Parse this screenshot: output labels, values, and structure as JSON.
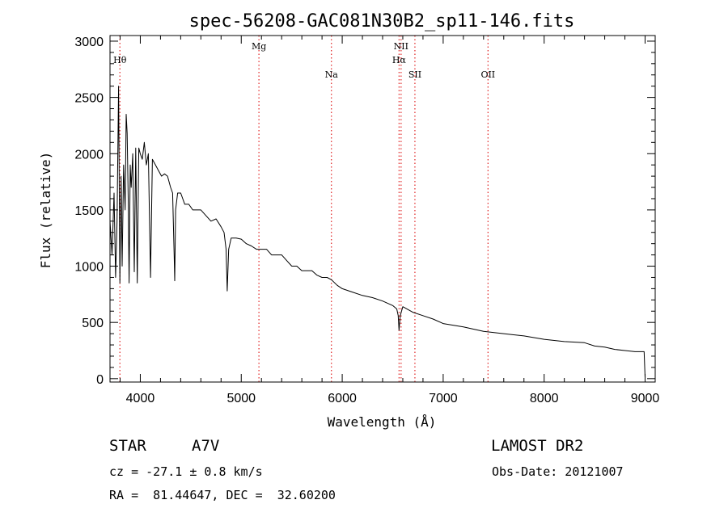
{
  "chart_data": {
    "type": "line",
    "title": "spec-56208-GAC081N30B2_sp11-146.fits",
    "xlabel": "Wavelength (Å)",
    "ylabel": "Flux (relative)",
    "xlim": [
      3700,
      9100
    ],
    "ylim": [
      -30,
      3050
    ],
    "xticks": [
      4000,
      5000,
      6000,
      7000,
      8000,
      9000
    ],
    "yticks": [
      0,
      500,
      1000,
      1500,
      2000,
      2500,
      3000
    ],
    "grid": false,
    "series": [
      {
        "color": "#000000",
        "x": [
          3700,
          3720,
          3740,
          3755,
          3770,
          3785,
          3798,
          3810,
          3820,
          3835,
          3850,
          3860,
          3870,
          3880,
          3889,
          3900,
          3910,
          3925,
          3940,
          3955,
          3970,
          3985,
          4000,
          4020,
          4040,
          4060,
          4080,
          4101,
          4120,
          4150,
          4180,
          4210,
          4240,
          4270,
          4300,
          4320,
          4335,
          4341,
          4350,
          4370,
          4400,
          4440,
          4480,
          4520,
          4560,
          4600,
          4650,
          4700,
          4750,
          4800,
          4830,
          4850,
          4861,
          4875,
          4900,
          4950,
          5000,
          5050,
          5100,
          5150,
          5200,
          5250,
          5300,
          5350,
          5400,
          5450,
          5500,
          5550,
          5600,
          5650,
          5700,
          5750,
          5800,
          5850,
          5893,
          5950,
          6000,
          6100,
          6200,
          6300,
          6400,
          6500,
          6540,
          6555,
          6563,
          6575,
          6600,
          6700,
          6800,
          6900,
          7000,
          7200,
          7400,
          7600,
          7800,
          8000,
          8200,
          8400,
          8500,
          8600,
          8700,
          8800,
          8900,
          8990,
          9000
        ],
        "y": [
          1400,
          1100,
          1650,
          900,
          1400,
          2600,
          850,
          1800,
          1000,
          1900,
          1500,
          2350,
          2180,
          1600,
          850,
          1900,
          1700,
          2000,
          950,
          2050,
          850,
          2050,
          2000,
          1950,
          2100,
          1900,
          2000,
          900,
          1950,
          1900,
          1850,
          1800,
          1820,
          1800,
          1700,
          1650,
          1100,
          870,
          1500,
          1650,
          1650,
          1550,
          1550,
          1500,
          1500,
          1500,
          1450,
          1400,
          1420,
          1350,
          1300,
          1150,
          780,
          1150,
          1250,
          1250,
          1240,
          1200,
          1180,
          1150,
          1150,
          1150,
          1100,
          1100,
          1100,
          1050,
          1000,
          1000,
          960,
          960,
          960,
          920,
          900,
          900,
          880,
          830,
          800,
          770,
          740,
          720,
          690,
          650,
          620,
          560,
          430,
          560,
          640,
          590,
          560,
          530,
          490,
          460,
          420,
          400,
          380,
          350,
          330,
          320,
          290,
          280,
          260,
          250,
          240,
          240,
          10
        ]
      }
    ],
    "reference_lines": [
      {
        "label": "Hθ",
        "x": 3798,
        "label_row": 1
      },
      {
        "label": "Mg",
        "x": 5175,
        "label_row": 0
      },
      {
        "label": "Na",
        "x": 5893,
        "label_row": 2
      },
      {
        "label": "NII",
        "x": 6583,
        "label_row": 0
      },
      {
        "label": "Hα",
        "x": 6563,
        "label_row": 1
      },
      {
        "label": "SII",
        "x": 6720,
        "label_row": 2
      },
      {
        "label": "OII",
        "x": 7444,
        "label_row": 2
      }
    ],
    "reference_line_color": "#e02020"
  },
  "info": {
    "object_class": "STAR",
    "subclass": "A7V",
    "survey": "LAMOST DR2",
    "redshift": "cz = -27.1 ± 0.8 km/s",
    "obs_date": "Obs-Date: 20121007",
    "coords": "RA =  81.44647, DEC =  32.60200"
  }
}
